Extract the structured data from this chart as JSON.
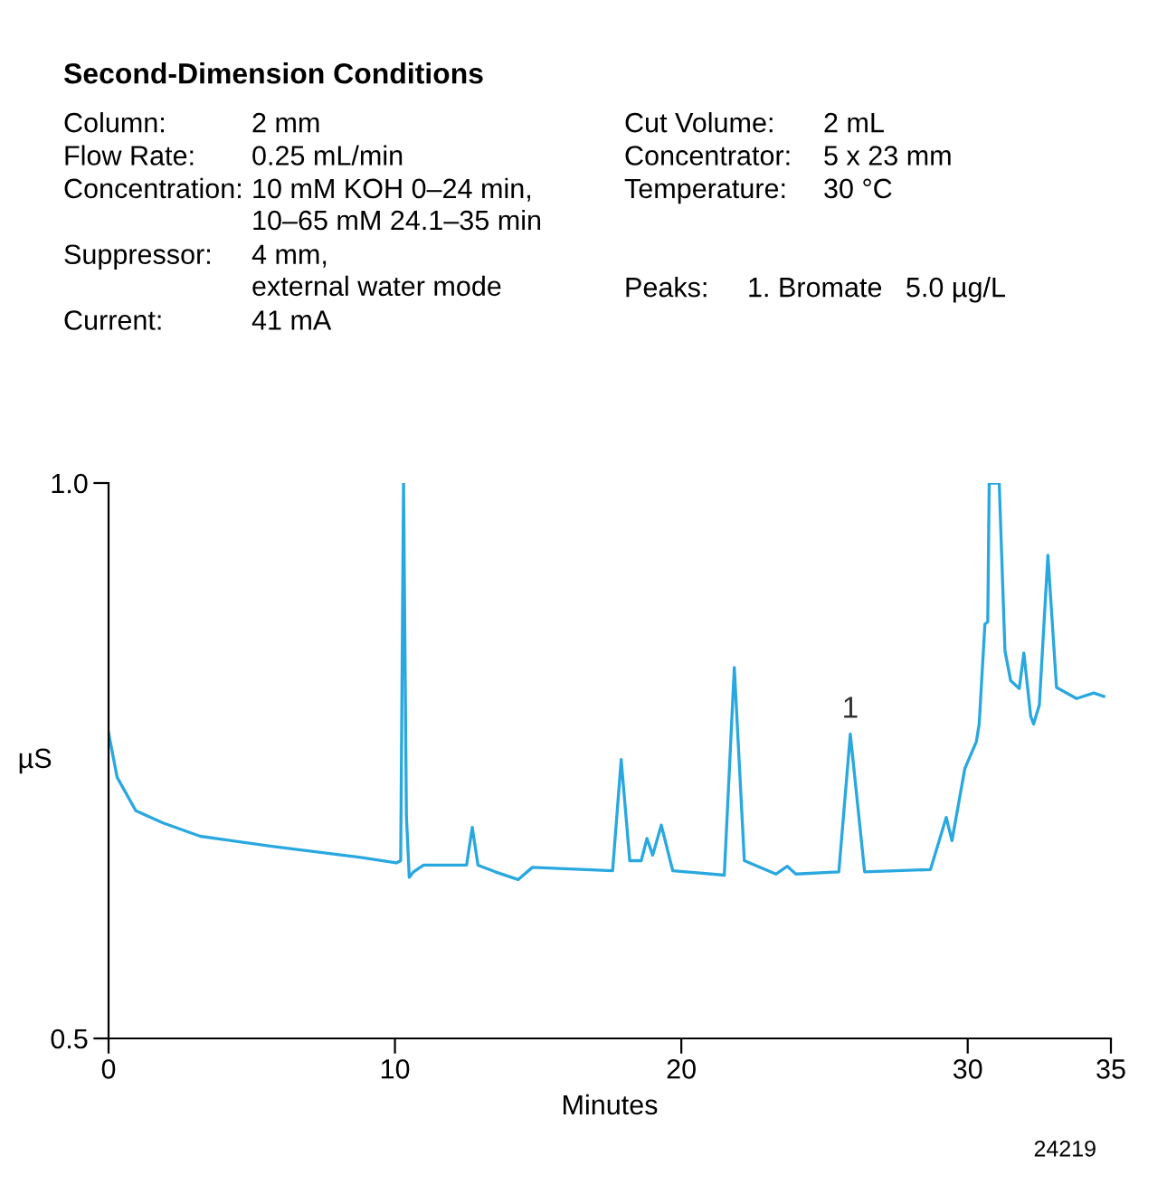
{
  "chart_data": {
    "type": "line",
    "title": "Second-Dimension Conditions",
    "xlabel": "Minutes",
    "ylabel": "µS",
    "xlim": [
      0,
      35
    ],
    "xticks": [
      0,
      10,
      20,
      30,
      35
    ],
    "ylim": [
      0.5,
      1.0
    ],
    "yticks": [
      {
        "value": 0.5,
        "label": "0.5"
      },
      {
        "value": 1.0,
        "label": "1.0"
      }
    ],
    "grid": false,
    "legend": false,
    "marker": "none",
    "line_style": "solid",
    "series": [
      {
        "color": "#29a8e0",
        "x": [
          0,
          0.3,
          0.95,
          1.9,
          3.2,
          5.7,
          8.8,
          10.05,
          10.2,
          10.3,
          10.4,
          10.5,
          10.65,
          11.0,
          12.5,
          12.7,
          12.9,
          13.5,
          14.3,
          14.8,
          17.6,
          17.9,
          18.2,
          18.6,
          18.8,
          19.0,
          19.3,
          19.7,
          21.5,
          21.85,
          22.2,
          23.3,
          23.7,
          24.0,
          25.5,
          25.9,
          26.4,
          28.7,
          29.25,
          29.45,
          29.9,
          30.3,
          30.4,
          30.6,
          30.7,
          30.75,
          31.1,
          31.3,
          31.5,
          31.8,
          31.96,
          32.2,
          32.3,
          32.5,
          32.8,
          33.1,
          33.8,
          34.4,
          34.75
        ],
        "values": [
          0.775,
          0.735,
          0.705,
          0.694,
          0.682,
          0.673,
          0.663,
          0.658,
          0.66,
          1.0,
          0.7,
          0.645,
          0.65,
          0.656,
          0.656,
          0.69,
          0.656,
          0.65,
          0.643,
          0.654,
          0.651,
          0.751,
          0.66,
          0.66,
          0.68,
          0.665,
          0.692,
          0.651,
          0.647,
          0.834,
          0.66,
          0.648,
          0.655,
          0.648,
          0.65,
          0.774,
          0.65,
          0.652,
          0.699,
          0.678,
          0.743,
          0.767,
          0.783,
          0.873,
          0.875,
          1.0,
          1.0,
          0.849,
          0.822,
          0.815,
          0.847,
          0.79,
          0.783,
          0.8,
          0.935,
          0.816,
          0.806,
          0.811,
          0.808
        ]
      }
    ],
    "annotations": [
      "Column: 2 mm",
      "Flow Rate: 0.25 mL/min",
      "Concentration: 10 mM KOH 0–24 min,\n10–65 mM 24.1–35 min",
      "Suppressor: 4 mm,\nexternal water mode",
      "Current: 41 mA",
      "Cut Volume: 2 mL",
      "Concentrator: 5 x 23 mm",
      "Temperature: 30 °C",
      "Peaks: 1. Bromate   5.0 µg/L",
      {
        "text": "1",
        "x": 25.9,
        "y": 0.774
      },
      "24219"
    ]
  }
}
